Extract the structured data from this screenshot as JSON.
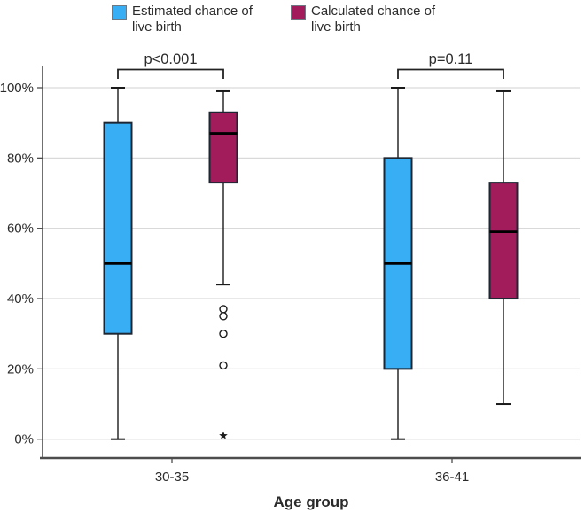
{
  "legend": {
    "items": [
      {
        "key": "estimated",
        "label": "Estimated chance of\nlive birth",
        "color": "#38AEF4"
      },
      {
        "key": "calculated",
        "label": "Calculated chance of\nlive birth",
        "color": "#A21B5B"
      }
    ]
  },
  "chart_data": {
    "type": "boxplot",
    "title": "",
    "xlabel": "Age group",
    "ylabel": "",
    "ylim": [
      0,
      100
    ],
    "yticks": [
      0,
      20,
      40,
      60,
      80,
      100
    ],
    "ytick_labels": [
      "0%",
      "20%",
      "40%",
      "60%",
      "80%",
      "100%"
    ],
    "categories": [
      "30-35",
      "36-41"
    ],
    "grid": true,
    "legend_position": "top",
    "series": [
      {
        "name": "Estimated chance of live birth",
        "color": "#38AEF4",
        "boxes": [
          {
            "category": "30-35",
            "min": 0,
            "q1": 30,
            "median": 50,
            "q3": 90,
            "max": 100,
            "outliers": [],
            "extremes": []
          },
          {
            "category": "36-41",
            "min": 0,
            "q1": 20,
            "median": 50,
            "q3": 80,
            "max": 100,
            "outliers": [],
            "extremes": []
          }
        ]
      },
      {
        "name": "Calculated chance of live birth",
        "color": "#A21B5B",
        "boxes": [
          {
            "category": "30-35",
            "min": 44,
            "q1": 73,
            "median": 87,
            "q3": 93,
            "max": 99,
            "outliers": [
              37,
              35,
              30,
              21
            ],
            "extremes": [
              1
            ]
          },
          {
            "category": "36-41",
            "min": 10,
            "q1": 40,
            "median": 59,
            "q3": 73,
            "max": 99,
            "outliers": [],
            "extremes": []
          }
        ]
      }
    ],
    "annotations": [
      {
        "category": "30-35",
        "label": "p<0.001"
      },
      {
        "category": "36-41",
        "label": "p=0.11"
      }
    ],
    "colors": {
      "gridline": "#d9d9d9",
      "axis": "#4d4d4d",
      "box_border": "#1d2733",
      "whisker": "#1a1a1a",
      "median": "#000000",
      "text": "#2b2b2b"
    }
  }
}
